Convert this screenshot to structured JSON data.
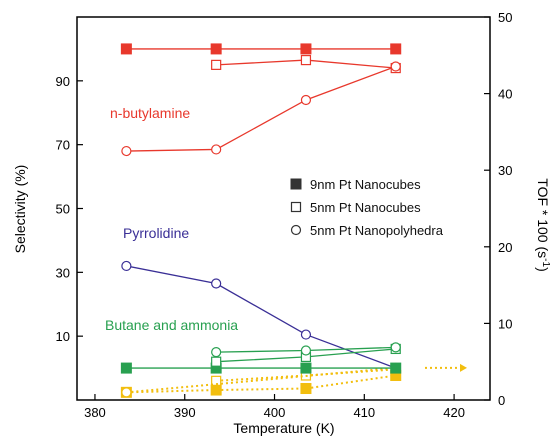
{
  "chart_data": {
    "type": "line",
    "xlabel": "Temperature (K)",
    "ylabel": "Selectivity (%)",
    "y2label": "TOF * 100 (s-1)",
    "xlim": [
      378,
      424
    ],
    "x_ticks": [
      380,
      390,
      400,
      410,
      420
    ],
    "ylim": [
      -10,
      110
    ],
    "y_ticks": [
      10,
      30,
      50,
      70,
      90
    ],
    "y2lim": [
      0,
      50
    ],
    "y2_ticks": [
      0,
      10,
      20,
      30,
      40,
      50
    ],
    "grid": false,
    "legend": {
      "position": "center-right",
      "entries": [
        {
          "marker": "filled-square",
          "label": "9nm Pt Nanocubes"
        },
        {
          "marker": "open-square",
          "label": "5nm Pt Nanocubes"
        },
        {
          "marker": "open-circle",
          "label": "5nm Pt Nanopolyhedra"
        }
      ]
    },
    "annotations": [
      {
        "text": "n-butylamine",
        "color": "#e8382c"
      },
      {
        "text": "Pyrrolidine",
        "color": "#3a2f96"
      },
      {
        "text": "Butane and ammonia",
        "color": "#28a050"
      }
    ],
    "colors": {
      "red": "#e8382c",
      "blue": "#3a2f96",
      "green": "#28a050",
      "gold": "#f2be0e"
    },
    "series": [
      {
        "group": "n-butylamine",
        "marker": "filled-square",
        "axis": "left",
        "color": "#e8382c",
        "x": [
          383.5,
          393.5,
          403.5,
          413.5
        ],
        "values": [
          100,
          100,
          100,
          100
        ]
      },
      {
        "group": "n-butylamine",
        "marker": "open-square",
        "axis": "left",
        "color": "#e8382c",
        "x": [
          393.5,
          403.5,
          413.5
        ],
        "values": [
          95,
          96.5,
          94
        ]
      },
      {
        "group": "n-butylamine",
        "marker": "open-circle",
        "axis": "left",
        "color": "#e8382c",
        "x": [
          383.5,
          393.5,
          403.5,
          413.5
        ],
        "values": [
          68,
          68.5,
          84,
          94.5
        ]
      },
      {
        "group": "Pyrrolidine",
        "marker": "open-circle",
        "axis": "left",
        "color": "#3a2f96",
        "x": [
          383.5,
          393.5,
          403.5,
          413.5
        ],
        "values": [
          32,
          26.5,
          10.5,
          0
        ]
      },
      {
        "group": "Butane and ammonia",
        "marker": "filled-square",
        "axis": "left",
        "color": "#28a050",
        "x": [
          383.5,
          393.5,
          403.5,
          413.5
        ],
        "values": [
          0,
          0,
          0,
          0
        ]
      },
      {
        "group": "Butane and ammonia",
        "marker": "open-square",
        "axis": "left",
        "color": "#28a050",
        "x": [
          393.5,
          403.5,
          413.5
        ],
        "values": [
          2,
          3.5,
          6
        ]
      },
      {
        "group": "Butane and ammonia",
        "marker": "open-circle",
        "axis": "left",
        "color": "#28a050",
        "x": [
          393.5,
          403.5,
          413.5
        ],
        "values": [
          5,
          5.5,
          6.5
        ]
      },
      {
        "group": "TOF",
        "marker": "filled-square",
        "axis": "right",
        "color": "#f2be0e",
        "x": [
          383.5,
          393.5,
          403.5,
          413.5
        ],
        "values": [
          1,
          1.3,
          1.5,
          3.2
        ]
      },
      {
        "group": "TOF",
        "marker": "open-square",
        "axis": "right",
        "color": "#f2be0e",
        "x": [
          393.5,
          403.5,
          413.5
        ],
        "values": [
          2.5,
          3.2,
          4
        ]
      },
      {
        "group": "TOF",
        "marker": "open-circle",
        "axis": "right",
        "color": "#f2be0e",
        "x": [
          383.5,
          413.5
        ],
        "values": [
          1,
          4.2
        ]
      }
    ]
  }
}
